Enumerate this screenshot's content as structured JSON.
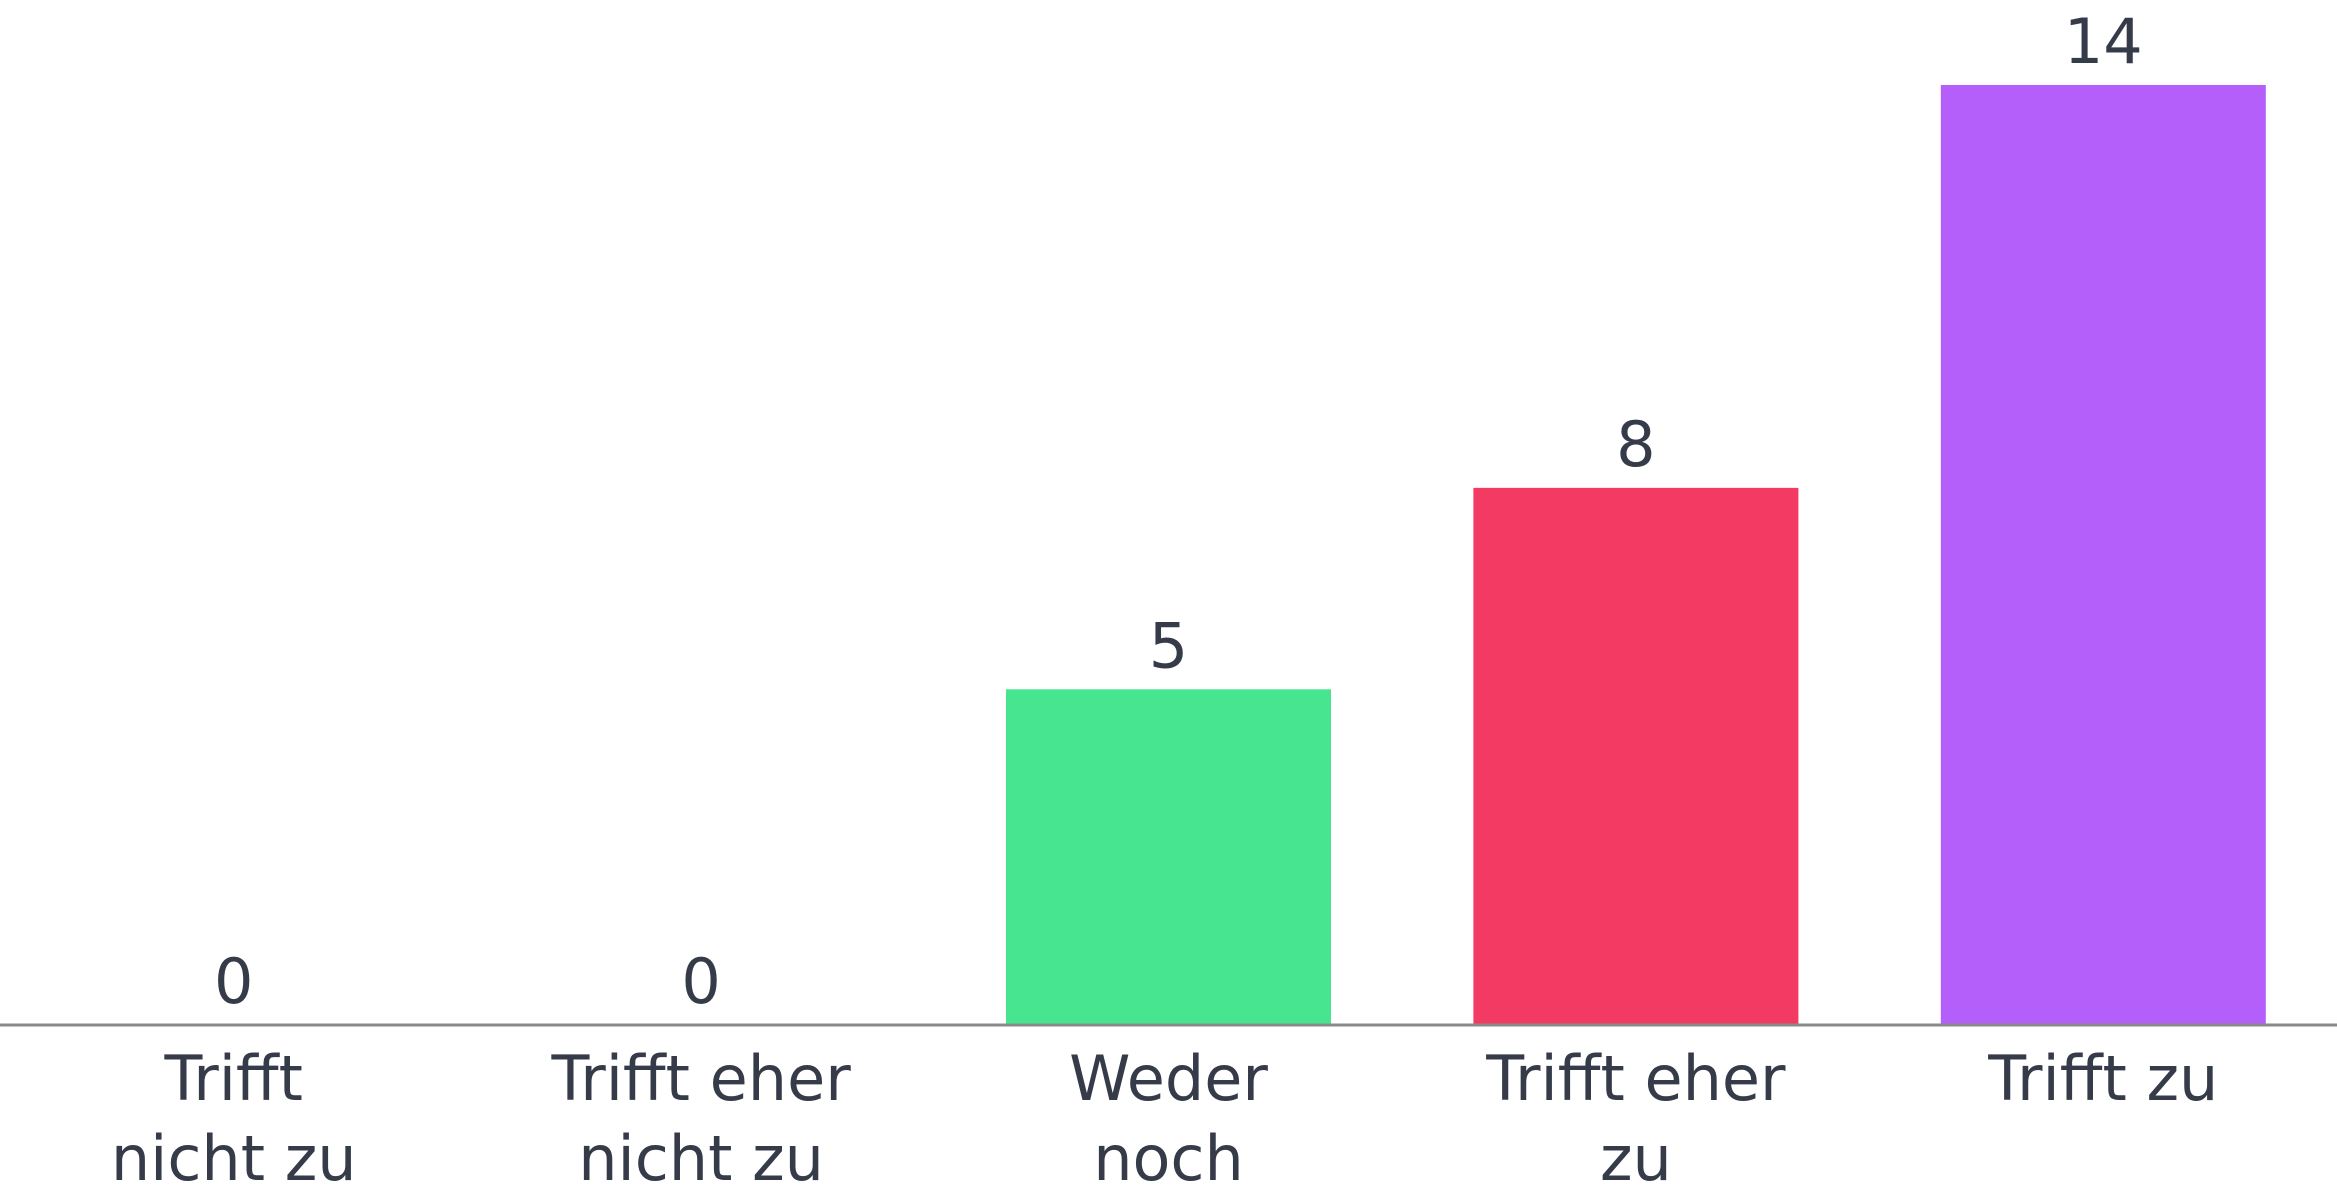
{
  "chart_data": {
    "type": "bar",
    "title": "",
    "xlabel": "",
    "ylabel": "",
    "ylim": [
      0,
      14
    ],
    "grid": false,
    "legend": "none",
    "categories": [
      [
        "Trifft",
        "nicht zu"
      ],
      [
        "Trifft eher",
        "nicht zu"
      ],
      [
        "Weder",
        "noch"
      ],
      [
        "Trifft eher",
        "zu"
      ],
      [
        "Trifft zu"
      ]
    ],
    "values": [
      0,
      0,
      5,
      8,
      14
    ],
    "colors": [
      "#4f86f7",
      "#f5a623",
      "#48e591",
      "#f33a63",
      "#b45ffa"
    ],
    "text_color": "#353b48",
    "axis_color": "#8a8a8a"
  }
}
